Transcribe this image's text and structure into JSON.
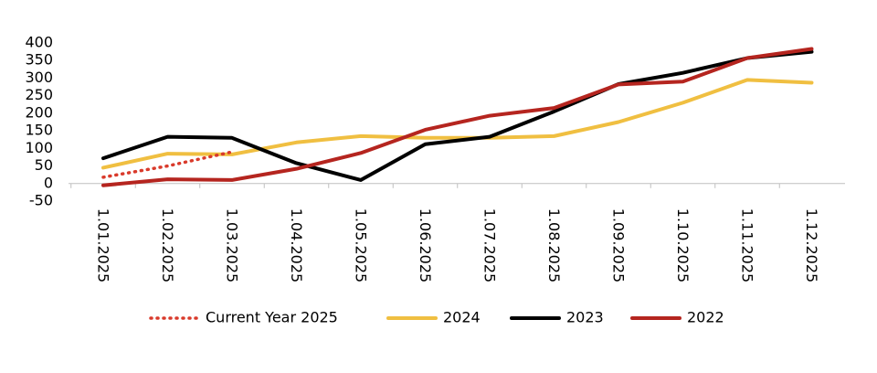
{
  "chart_data": {
    "type": "line",
    "categories": [
      "1.01.2025",
      "1.02.2025",
      "1.03.2025",
      "1.04.2025",
      "1.05.2025",
      "1.06.2025",
      "1.07.2025",
      "1.08.2025",
      "1.09.2025",
      "1.10.2025",
      "1.11.2025",
      "1.12.2025"
    ],
    "series": [
      {
        "name": "Current Year 2025",
        "color": "#d93a2b",
        "dotted": true,
        "values": [
          18,
          50,
          90,
          null,
          null,
          null,
          null,
          null,
          null,
          null,
          null,
          null
        ]
      },
      {
        "name": "2024",
        "color": "#f0bf41",
        "values": [
          45,
          85,
          83,
          117,
          135,
          130,
          130,
          135,
          175,
          230,
          295,
          287
        ]
      },
      {
        "name": "2023",
        "color": "#000000",
        "values": [
          72,
          133,
          130,
          58,
          10,
          112,
          133,
          205,
          283,
          315,
          357,
          375
        ]
      },
      {
        "name": "2022",
        "color": "#b5251f",
        "values": [
          -5,
          12,
          10,
          42,
          87,
          153,
          193,
          215,
          282,
          290,
          357,
          383
        ]
      }
    ],
    "ylim": [
      -50,
      400
    ],
    "yticks": [
      -50,
      0,
      50,
      100,
      150,
      200,
      250,
      300,
      350,
      400
    ],
    "legend": "bottom"
  }
}
